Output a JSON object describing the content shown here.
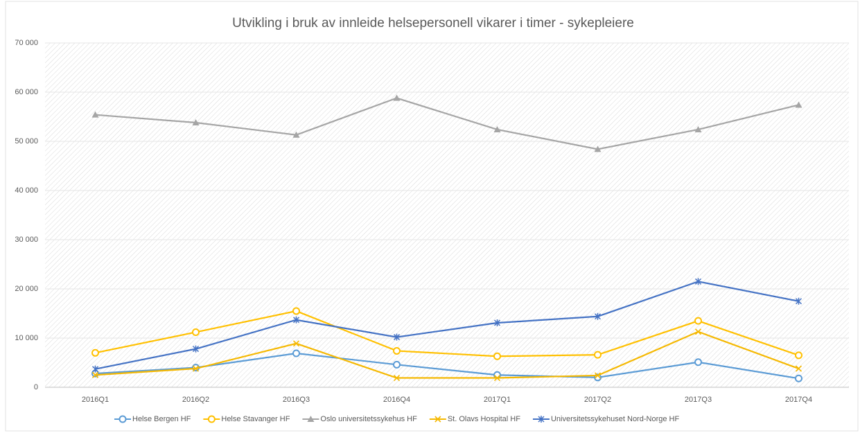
{
  "chart_data": {
    "type": "line",
    "title": "Utvikling i bruk av innleide helsepersonell vikarer  i timer - sykepleiere",
    "categories": [
      "2016Q1",
      "2016Q2",
      "2016Q3",
      "2016Q4",
      "2017Q1",
      "2017Q2",
      "2017Q3",
      "2017Q4"
    ],
    "series": [
      {
        "name": "Helse Bergen HF",
        "color": "#5b9bd5",
        "marker": "circle",
        "values": [
          2800,
          4000,
          6900,
          4600,
          2500,
          2000,
          5100,
          1800
        ]
      },
      {
        "name": "Helse Stavanger HF",
        "color": "#ffc000",
        "marker": "circle",
        "values": [
          7000,
          11200,
          15500,
          7400,
          6300,
          6600,
          13500,
          6500
        ]
      },
      {
        "name": "Oslo universitetssykehus HF",
        "color": "#a5a5a5",
        "marker": "triangle",
        "values": [
          55400,
          53800,
          51300,
          58800,
          52400,
          48400,
          52400,
          57400
        ]
      },
      {
        "name": "St. Olavs Hospital HF",
        "color": "#f5b800",
        "marker": "x",
        "values": [
          2500,
          3800,
          8900,
          1900,
          1900,
          2400,
          11300,
          3800
        ]
      },
      {
        "name": "Universitetssykehuset Nord-Norge HF",
        "color": "#4472c4",
        "marker": "star",
        "values": [
          3700,
          7800,
          13700,
          10200,
          13100,
          14400,
          21500,
          17500
        ]
      }
    ],
    "ylim": [
      0,
      70000
    ],
    "yticks": [
      0,
      {
        "value": 10000,
        "label": "10 000"
      },
      {
        "value": 20000,
        "label": "20 000"
      },
      {
        "value": 30000,
        "label": "30 000"
      },
      {
        "value": 40000,
        "label": "40 000"
      },
      {
        "value": 50000,
        "label": "50 000"
      },
      {
        "value": 60000,
        "label": "60 000"
      },
      {
        "value": 70000,
        "label": "70 000"
      }
    ],
    "grid": true,
    "legend": "bottom"
  }
}
